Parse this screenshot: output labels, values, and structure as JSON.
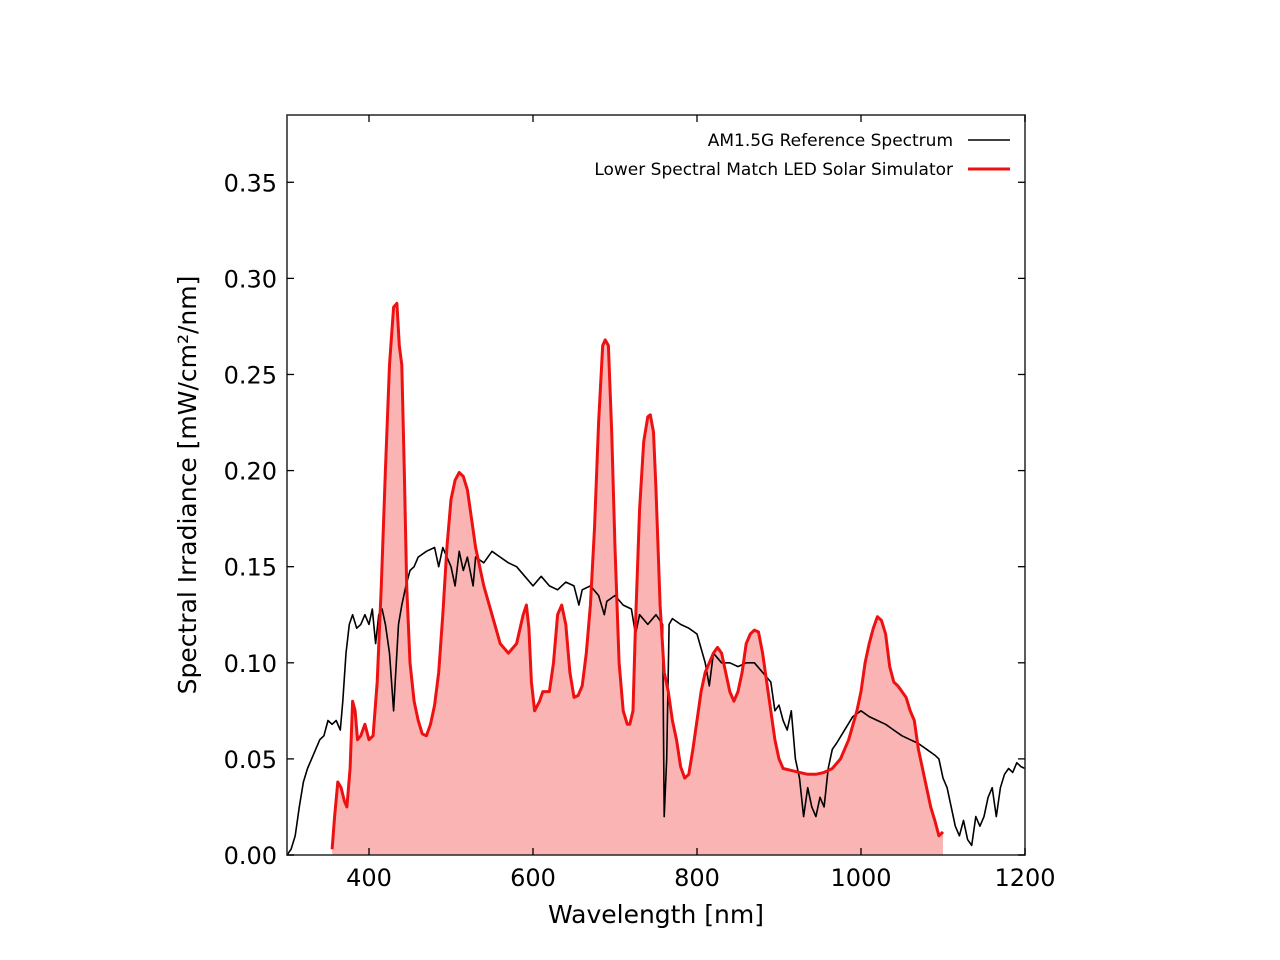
{
  "chart_data": {
    "type": "line",
    "title": "",
    "xlabel": "Wavelength [nm]",
    "ylabel": "Spectral Irradiance [mW/cm²/nm]",
    "xlim": [
      300,
      1200
    ],
    "ylim": [
      0,
      0.385
    ],
    "xticks": [
      400,
      600,
      800,
      1000,
      1200
    ],
    "xtick_labels": [
      "400",
      "600",
      "800",
      "1000",
      "1200"
    ],
    "yticks": [
      0.0,
      0.05,
      0.1,
      0.15,
      0.2,
      0.25,
      0.3,
      0.35
    ],
    "ytick_labels": [
      "0.00",
      "0.05",
      "0.10",
      "0.15",
      "0.20",
      "0.25",
      "0.30",
      "0.35"
    ],
    "grid": false,
    "legend_position": "top-right",
    "series": [
      {
        "name": "AM1.5G Reference Spectrum",
        "color": "#000000",
        "style": "line",
        "points": [
          [
            300,
            0.0
          ],
          [
            305,
            0.003
          ],
          [
            310,
            0.01
          ],
          [
            315,
            0.025
          ],
          [
            320,
            0.038
          ],
          [
            325,
            0.045
          ],
          [
            330,
            0.05
          ],
          [
            335,
            0.055
          ],
          [
            340,
            0.06
          ],
          [
            345,
            0.062
          ],
          [
            350,
            0.07
          ],
          [
            355,
            0.068
          ],
          [
            360,
            0.07
          ],
          [
            365,
            0.065
          ],
          [
            368,
            0.08
          ],
          [
            372,
            0.105
          ],
          [
            376,
            0.12
          ],
          [
            380,
            0.125
          ],
          [
            385,
            0.118
          ],
          [
            390,
            0.12
          ],
          [
            395,
            0.125
          ],
          [
            400,
            0.12
          ],
          [
            404,
            0.128
          ],
          [
            408,
            0.11
          ],
          [
            412,
            0.125
          ],
          [
            416,
            0.128
          ],
          [
            420,
            0.12
          ],
          [
            425,
            0.105
          ],
          [
            430,
            0.075
          ],
          [
            432,
            0.09
          ],
          [
            436,
            0.12
          ],
          [
            440,
            0.13
          ],
          [
            445,
            0.14
          ],
          [
            450,
            0.148
          ],
          [
            455,
            0.15
          ],
          [
            460,
            0.155
          ],
          [
            470,
            0.158
          ],
          [
            480,
            0.16
          ],
          [
            485,
            0.15
          ],
          [
            490,
            0.16
          ],
          [
            495,
            0.155
          ],
          [
            500,
            0.15
          ],
          [
            505,
            0.14
          ],
          [
            510,
            0.158
          ],
          [
            515,
            0.148
          ],
          [
            520,
            0.155
          ],
          [
            527,
            0.14
          ],
          [
            530,
            0.155
          ],
          [
            540,
            0.152
          ],
          [
            550,
            0.158
          ],
          [
            560,
            0.155
          ],
          [
            570,
            0.152
          ],
          [
            580,
            0.15
          ],
          [
            590,
            0.145
          ],
          [
            600,
            0.14
          ],
          [
            610,
            0.145
          ],
          [
            620,
            0.14
          ],
          [
            630,
            0.138
          ],
          [
            640,
            0.142
          ],
          [
            650,
            0.14
          ],
          [
            656,
            0.13
          ],
          [
            660,
            0.138
          ],
          [
            670,
            0.14
          ],
          [
            680,
            0.135
          ],
          [
            687,
            0.125
          ],
          [
            690,
            0.132
          ],
          [
            700,
            0.135
          ],
          [
            710,
            0.13
          ],
          [
            720,
            0.128
          ],
          [
            725,
            0.115
          ],
          [
            730,
            0.125
          ],
          [
            740,
            0.12
          ],
          [
            750,
            0.125
          ],
          [
            758,
            0.12
          ],
          [
            760,
            0.02
          ],
          [
            763,
            0.05
          ],
          [
            766,
            0.12
          ],
          [
            770,
            0.123
          ],
          [
            780,
            0.12
          ],
          [
            790,
            0.118
          ],
          [
            800,
            0.115
          ],
          [
            810,
            0.1
          ],
          [
            815,
            0.088
          ],
          [
            820,
            0.105
          ],
          [
            830,
            0.1
          ],
          [
            840,
            0.1
          ],
          [
            850,
            0.098
          ],
          [
            860,
            0.1
          ],
          [
            870,
            0.1
          ],
          [
            880,
            0.095
          ],
          [
            890,
            0.09
          ],
          [
            895,
            0.075
          ],
          [
            900,
            0.078
          ],
          [
            905,
            0.07
          ],
          [
            910,
            0.065
          ],
          [
            915,
            0.075
          ],
          [
            920,
            0.05
          ],
          [
            925,
            0.04
          ],
          [
            930,
            0.02
          ],
          [
            935,
            0.035
          ],
          [
            940,
            0.025
          ],
          [
            945,
            0.02
          ],
          [
            950,
            0.03
          ],
          [
            955,
            0.025
          ],
          [
            960,
            0.045
          ],
          [
            965,
            0.055
          ],
          [
            970,
            0.058
          ],
          [
            980,
            0.065
          ],
          [
            990,
            0.072
          ],
          [
            1000,
            0.075
          ],
          [
            1010,
            0.072
          ],
          [
            1020,
            0.07
          ],
          [
            1030,
            0.068
          ],
          [
            1040,
            0.065
          ],
          [
            1050,
            0.062
          ],
          [
            1060,
            0.06
          ],
          [
            1070,
            0.058
          ],
          [
            1080,
            0.055
          ],
          [
            1090,
            0.052
          ],
          [
            1095,
            0.05
          ],
          [
            1100,
            0.04
          ],
          [
            1105,
            0.035
          ],
          [
            1110,
            0.025
          ],
          [
            1115,
            0.015
          ],
          [
            1120,
            0.01
          ],
          [
            1125,
            0.018
          ],
          [
            1130,
            0.008
          ],
          [
            1135,
            0.005
          ],
          [
            1140,
            0.02
          ],
          [
            1145,
            0.015
          ],
          [
            1150,
            0.02
          ],
          [
            1155,
            0.03
          ],
          [
            1160,
            0.035
          ],
          [
            1165,
            0.02
          ],
          [
            1170,
            0.035
          ],
          [
            1175,
            0.042
          ],
          [
            1180,
            0.045
          ],
          [
            1185,
            0.043
          ],
          [
            1190,
            0.048
          ],
          [
            1195,
            0.046
          ],
          [
            1200,
            0.045
          ]
        ]
      },
      {
        "name": "Lower Spectral Match LED Solar Simulator",
        "color": "#ee1111",
        "fill": "#fbb4b4",
        "style": "filled-line",
        "points": [
          [
            355,
            0.003
          ],
          [
            358,
            0.02
          ],
          [
            362,
            0.038
          ],
          [
            366,
            0.035
          ],
          [
            370,
            0.028
          ],
          [
            373,
            0.025
          ],
          [
            377,
            0.045
          ],
          [
            380,
            0.08
          ],
          [
            383,
            0.075
          ],
          [
            386,
            0.06
          ],
          [
            390,
            0.062
          ],
          [
            395,
            0.068
          ],
          [
            400,
            0.06
          ],
          [
            405,
            0.062
          ],
          [
            410,
            0.09
          ],
          [
            415,
            0.14
          ],
          [
            420,
            0.2
          ],
          [
            425,
            0.255
          ],
          [
            430,
            0.285
          ],
          [
            434,
            0.287
          ],
          [
            437,
            0.265
          ],
          [
            440,
            0.255
          ],
          [
            443,
            0.2
          ],
          [
            446,
            0.14
          ],
          [
            450,
            0.1
          ],
          [
            455,
            0.08
          ],
          [
            460,
            0.07
          ],
          [
            465,
            0.063
          ],
          [
            470,
            0.062
          ],
          [
            475,
            0.068
          ],
          [
            480,
            0.078
          ],
          [
            485,
            0.095
          ],
          [
            490,
            0.125
          ],
          [
            495,
            0.16
          ],
          [
            500,
            0.185
          ],
          [
            505,
            0.195
          ],
          [
            510,
            0.199
          ],
          [
            515,
            0.197
          ],
          [
            520,
            0.19
          ],
          [
            525,
            0.175
          ],
          [
            530,
            0.16
          ],
          [
            540,
            0.14
          ],
          [
            550,
            0.125
          ],
          [
            560,
            0.11
          ],
          [
            570,
            0.105
          ],
          [
            580,
            0.11
          ],
          [
            588,
            0.125
          ],
          [
            592,
            0.13
          ],
          [
            595,
            0.118
          ],
          [
            598,
            0.09
          ],
          [
            602,
            0.075
          ],
          [
            608,
            0.08
          ],
          [
            612,
            0.085
          ],
          [
            620,
            0.085
          ],
          [
            625,
            0.1
          ],
          [
            630,
            0.125
          ],
          [
            635,
            0.13
          ],
          [
            640,
            0.12
          ],
          [
            645,
            0.095
          ],
          [
            650,
            0.082
          ],
          [
            655,
            0.083
          ],
          [
            660,
            0.088
          ],
          [
            665,
            0.105
          ],
          [
            670,
            0.13
          ],
          [
            675,
            0.17
          ],
          [
            680,
            0.225
          ],
          [
            685,
            0.265
          ],
          [
            688,
            0.268
          ],
          [
            692,
            0.265
          ],
          [
            696,
            0.22
          ],
          [
            700,
            0.16
          ],
          [
            705,
            0.1
          ],
          [
            710,
            0.075
          ],
          [
            715,
            0.068
          ],
          [
            718,
            0.068
          ],
          [
            722,
            0.075
          ],
          [
            725,
            0.12
          ],
          [
            730,
            0.18
          ],
          [
            735,
            0.215
          ],
          [
            740,
            0.228
          ],
          [
            743,
            0.229
          ],
          [
            747,
            0.22
          ],
          [
            750,
            0.19
          ],
          [
            755,
            0.13
          ],
          [
            760,
            0.095
          ],
          [
            765,
            0.085
          ],
          [
            770,
            0.07
          ],
          [
            775,
            0.06
          ],
          [
            780,
            0.046
          ],
          [
            785,
            0.04
          ],
          [
            790,
            0.042
          ],
          [
            795,
            0.055
          ],
          [
            800,
            0.07
          ],
          [
            805,
            0.085
          ],
          [
            810,
            0.095
          ],
          [
            815,
            0.1
          ],
          [
            820,
            0.105
          ],
          [
            825,
            0.108
          ],
          [
            830,
            0.105
          ],
          [
            835,
            0.095
          ],
          [
            840,
            0.085
          ],
          [
            845,
            0.08
          ],
          [
            850,
            0.085
          ],
          [
            855,
            0.095
          ],
          [
            860,
            0.11
          ],
          [
            865,
            0.115
          ],
          [
            870,
            0.117
          ],
          [
            875,
            0.116
          ],
          [
            880,
            0.105
          ],
          [
            885,
            0.09
          ],
          [
            890,
            0.075
          ],
          [
            895,
            0.06
          ],
          [
            900,
            0.05
          ],
          [
            905,
            0.045
          ],
          [
            915,
            0.044
          ],
          [
            925,
            0.043
          ],
          [
            935,
            0.042
          ],
          [
            945,
            0.042
          ],
          [
            955,
            0.043
          ],
          [
            965,
            0.045
          ],
          [
            975,
            0.05
          ],
          [
            985,
            0.06
          ],
          [
            995,
            0.075
          ],
          [
            1000,
            0.085
          ],
          [
            1005,
            0.1
          ],
          [
            1010,
            0.11
          ],
          [
            1015,
            0.118
          ],
          [
            1020,
            0.124
          ],
          [
            1025,
            0.122
          ],
          [
            1030,
            0.115
          ],
          [
            1035,
            0.098
          ],
          [
            1040,
            0.09
          ],
          [
            1045,
            0.088
          ],
          [
            1050,
            0.085
          ],
          [
            1055,
            0.082
          ],
          [
            1060,
            0.075
          ],
          [
            1065,
            0.07
          ],
          [
            1070,
            0.055
          ],
          [
            1075,
            0.045
          ],
          [
            1080,
            0.035
          ],
          [
            1085,
            0.025
          ],
          [
            1090,
            0.018
          ],
          [
            1095,
            0.01
          ],
          [
            1100,
            0.012
          ]
        ]
      }
    ]
  }
}
